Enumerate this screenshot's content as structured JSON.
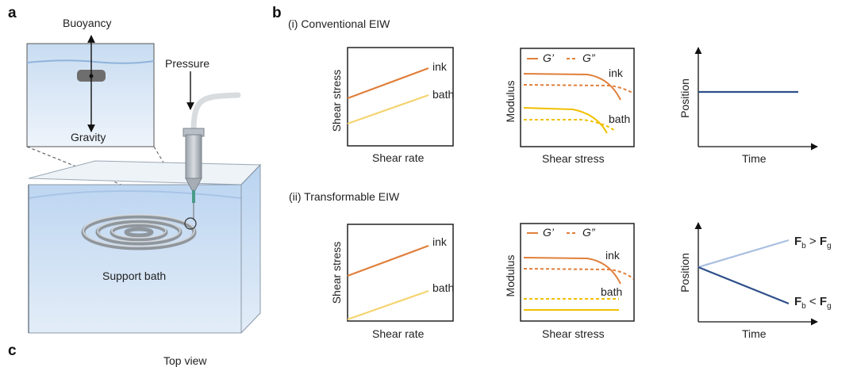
{
  "panels": {
    "a": "a",
    "b": "b",
    "c": "c"
  },
  "panel_a": {
    "buoyancy": "Buoyancy",
    "gravity": "Gravity",
    "pressure": "Pressure",
    "support_bath": "Support bath"
  },
  "panel_b": {
    "row1_title": "(i)  Conventional EIW",
    "row2_title": "(ii) Transformable EIW",
    "shear_stress": "Shear stress",
    "shear_rate": "Shear rate",
    "modulus": "Modulus",
    "position": "Position",
    "time": "Time",
    "ink": "ink",
    "bath": "bath",
    "g_prime": "G’",
    "g_double_prime": "G”",
    "fb_gt_fg": {
      "F1": "F",
      "s1": "b",
      "op": " > ",
      "F2": "F",
      "s2": "g"
    },
    "fb_lt_fg": {
      "F1": "F",
      "s1": "b",
      "op": " < ",
      "F2": "F",
      "s2": "g"
    }
  },
  "panel_c": {
    "top_view": "Top view"
  },
  "colors": {
    "ink": "#e07f3b",
    "bath_flow": "#f5d470",
    "bath_mod": "#f0c000",
    "pos_dark": "#2f4f8a",
    "pos_light": "#a9bfe0",
    "water": "#c6dcf2"
  }
}
